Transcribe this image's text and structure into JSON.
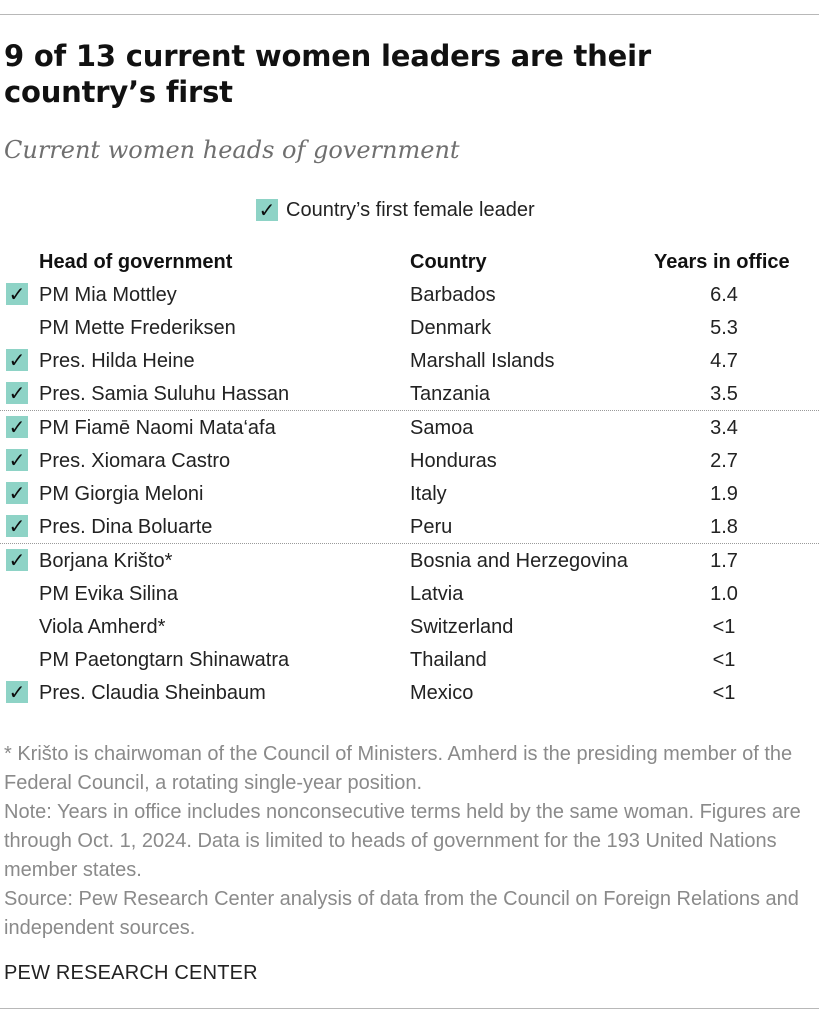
{
  "chart_data": {
    "type": "table",
    "title": "9 of 13 current women leaders are their country’s first",
    "subtitle": "Current women heads of government",
    "legend": {
      "label": "Country’s first female leader",
      "symbol": "✓",
      "color": "#8ed3c6"
    },
    "columns": [
      "Head of government",
      "Country",
      "Years in office"
    ],
    "rows": [
      {
        "name": "PM Mia Mottley",
        "country": "Barbados",
        "years": "6.4",
        "first": true
      },
      {
        "name": "PM Mette Frederiksen",
        "country": "Denmark",
        "years": "5.3",
        "first": false
      },
      {
        "name": "Pres. Hilda Heine",
        "country": "Marshall Islands",
        "years": "4.7",
        "first": true
      },
      {
        "name": "Pres. Samia Suluhu Hassan",
        "country": "Tanzania",
        "years": "3.5",
        "first": true
      },
      {
        "name": "PM Fiamē Naomi Mata‘afa",
        "country": "Samoa",
        "years": "3.4",
        "first": true
      },
      {
        "name": "Pres. Xiomara Castro",
        "country": "Honduras",
        "years": "2.7",
        "first": true
      },
      {
        "name": "PM Giorgia Meloni",
        "country": "Italy",
        "years": "1.9",
        "first": true
      },
      {
        "name": "Pres. Dina Boluarte",
        "country": "Peru",
        "years": "1.8",
        "first": true
      },
      {
        "name": "Borjana Krišto*",
        "country": "Bosnia and Herzegovina",
        "years": "1.7",
        "first": true
      },
      {
        "name": "PM Evika Silina",
        "country": "Latvia",
        "years": "1.0",
        "first": false
      },
      {
        "name": "Viola Amherd*",
        "country": "Switzerland",
        "years": "<1",
        "first": false
      },
      {
        "name": "PM Paetongtarn Shinawatra",
        "country": "Thailand",
        "years": "<1",
        "first": false
      },
      {
        "name": "Pres. Claudia Sheinbaum",
        "country": "Mexico",
        "years": "<1",
        "first": true
      }
    ],
    "separators_after_rows": [
      4,
      8
    ]
  },
  "notes": {
    "footnote": "* Krišto is chairwoman of the Council of Ministers. Amherd is the presiding member of the Federal Council, a rotating single-year position.",
    "note": "Note: Years in office includes nonconsecutive terms held by the same woman. Figures are through Oct. 1, 2024. Data is limited to heads of government for the 193 United Nations member states.",
    "source": "Source: Pew Research Center analysis of data from the Council on Foreign Relations and independent sources."
  },
  "footer": {
    "brand": "PEW RESEARCH CENTER"
  }
}
